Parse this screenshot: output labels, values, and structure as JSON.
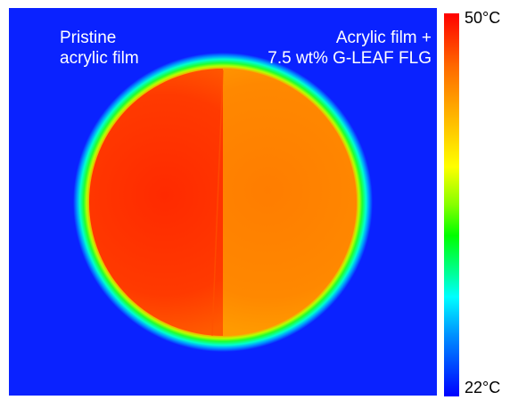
{
  "image": {
    "left_label_lines": [
      "Pristine",
      "acrylic film"
    ],
    "right_label_lines": [
      "Acrylic film +",
      "7.5 wt% G-LEAF  FLG"
    ]
  },
  "colorbar": {
    "max_label": "50°C",
    "min_label": "22°C",
    "colors": {
      "hot": "#ff0000",
      "warm": "#ff8a00",
      "mid": "#ffff00",
      "cool": "#00ff00",
      "cold": "#0000ff"
    }
  }
}
